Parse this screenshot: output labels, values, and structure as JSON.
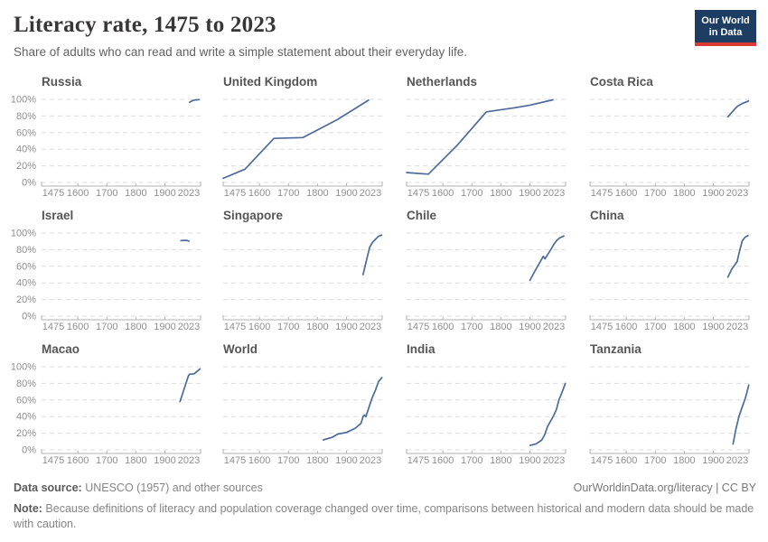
{
  "header": {
    "title": "Literacy rate, 1475 to 2023",
    "subtitle": "Share of adults who can read and write a simple statement about their everyday life.",
    "logo": {
      "line1": "Our World",
      "line2": "in Data"
    }
  },
  "colors": {
    "line": "#4c6a9c",
    "gridline": "#dcdcdc",
    "axis": "#b0b0b0",
    "axis_text": "#8f8f8f",
    "chart_title_text": "#555555",
    "logo_bg": "#1d3d63",
    "logo_accent": "#d93a34"
  },
  "footer": {
    "datasource_label": "Data source:",
    "datasource_text": " UNESCO (1957) and other sources",
    "link": "OurWorldinData.org/literacy | CC BY",
    "note_label": "Note:",
    "note_text": " Because definitions of literacy and population coverage changed over time, comparisons between historical and modern data should be made with caution."
  },
  "chart_data": {
    "type": "line",
    "title": "Literacy rate, 1475 to 2023",
    "subtitle": "Share of adults who can read and write a simple statement about their everyday life.",
    "layout": "small-multiples 4 columns x 3 rows",
    "x_range": [
      1475,
      2023
    ],
    "x_ticks": [
      1475,
      1600,
      1700,
      1800,
      1900,
      2023
    ],
    "x_tick_labels": [
      "1475",
      "1600",
      "1700",
      "1800",
      "1900",
      "2023"
    ],
    "ylim": [
      0,
      100
    ],
    "y_ticks": [
      0,
      20,
      40,
      60,
      80,
      100
    ],
    "y_tick_labels": [
      "0%",
      "20%",
      "40%",
      "60%",
      "80%",
      "100%"
    ],
    "grid": "horizontal dashed",
    "legend": "none",
    "line_color": "#4c6a9c",
    "series": [
      {
        "name": "Russia",
        "points": [
          [
            1985,
            96.5
          ],
          [
            1995,
            98.5
          ],
          [
            2005,
            99.4
          ],
          [
            2018,
            99.7
          ]
        ]
      },
      {
        "name": "United Kingdom",
        "points": [
          [
            1475,
            5
          ],
          [
            1550,
            16
          ],
          [
            1650,
            53
          ],
          [
            1750,
            54
          ],
          [
            1870,
            76
          ],
          [
            1976,
            99
          ]
        ]
      },
      {
        "name": "Netherlands",
        "points": [
          [
            1475,
            12
          ],
          [
            1550,
            10
          ],
          [
            1650,
            45
          ],
          [
            1750,
            85
          ],
          [
            1850,
            90
          ],
          [
            1900,
            93
          ],
          [
            1979,
            99.5
          ]
        ]
      },
      {
        "name": "Costa Rica",
        "points": [
          [
            1950,
            79
          ],
          [
            1963,
            84
          ],
          [
            1973,
            88
          ],
          [
            1984,
            92
          ],
          [
            2000,
            95
          ],
          [
            2011,
            96.5
          ],
          [
            2021,
            98
          ]
        ]
      },
      {
        "name": "Israel",
        "points": [
          [
            1955,
            91
          ],
          [
            1975,
            91.2
          ],
          [
            1983,
            90.3
          ]
        ]
      },
      {
        "name": "Singapore",
        "points": [
          [
            1957,
            50
          ],
          [
            1970,
            69
          ],
          [
            1980,
            83
          ],
          [
            1990,
            89
          ],
          [
            2000,
            92.5
          ],
          [
            2010,
            96
          ],
          [
            2021,
            97.6
          ]
        ]
      },
      {
        "name": "Chile",
        "points": [
          [
            1900,
            43
          ],
          [
            1920,
            56
          ],
          [
            1946,
            72
          ],
          [
            1952,
            69
          ],
          [
            1970,
            79
          ],
          [
            1982,
            86
          ],
          [
            1992,
            91
          ],
          [
            2002,
            94
          ],
          [
            2017,
            96.5
          ]
        ]
      },
      {
        "name": "China",
        "points": [
          [
            1950,
            47
          ],
          [
            1964,
            57
          ],
          [
            1982,
            65.5
          ],
          [
            1990,
            77.8
          ],
          [
            2000,
            90.9
          ],
          [
            2010,
            95.1
          ],
          [
            2020,
            97
          ]
        ]
      },
      {
        "name": "Macao",
        "points": [
          [
            1952,
            58
          ],
          [
            1981,
            89
          ],
          [
            1985,
            91
          ],
          [
            2001,
            91.5
          ],
          [
            2016,
            96
          ],
          [
            2021,
            97.5
          ]
        ]
      },
      {
        "name": "World",
        "points": [
          [
            1820,
            12
          ],
          [
            1850,
            15
          ],
          [
            1870,
            19
          ],
          [
            1900,
            21
          ],
          [
            1930,
            26
          ],
          [
            1950,
            32
          ],
          [
            1957,
            40
          ],
          [
            1962,
            42
          ],
          [
            1967,
            40
          ],
          [
            1980,
            54
          ],
          [
            1990,
            64
          ],
          [
            2000,
            72
          ],
          [
            2010,
            82
          ],
          [
            2022,
            87
          ]
        ]
      },
      {
        "name": "India",
        "points": [
          [
            1901,
            5.4
          ],
          [
            1921,
            7.2
          ],
          [
            1941,
            12
          ],
          [
            1951,
            18.3
          ],
          [
            1961,
            28.3
          ],
          [
            1971,
            34.5
          ],
          [
            1981,
            40.8
          ],
          [
            1991,
            48.2
          ],
          [
            2001,
            61
          ],
          [
            2011,
            69.3
          ],
          [
            2022,
            80
          ]
        ]
      },
      {
        "name": "Tanzania",
        "points": [
          [
            1968,
            7
          ],
          [
            1978,
            25
          ],
          [
            1988,
            40
          ],
          [
            2000,
            52
          ],
          [
            2010,
            62
          ],
          [
            2015,
            68
          ],
          [
            2022,
            78
          ]
        ]
      }
    ]
  }
}
